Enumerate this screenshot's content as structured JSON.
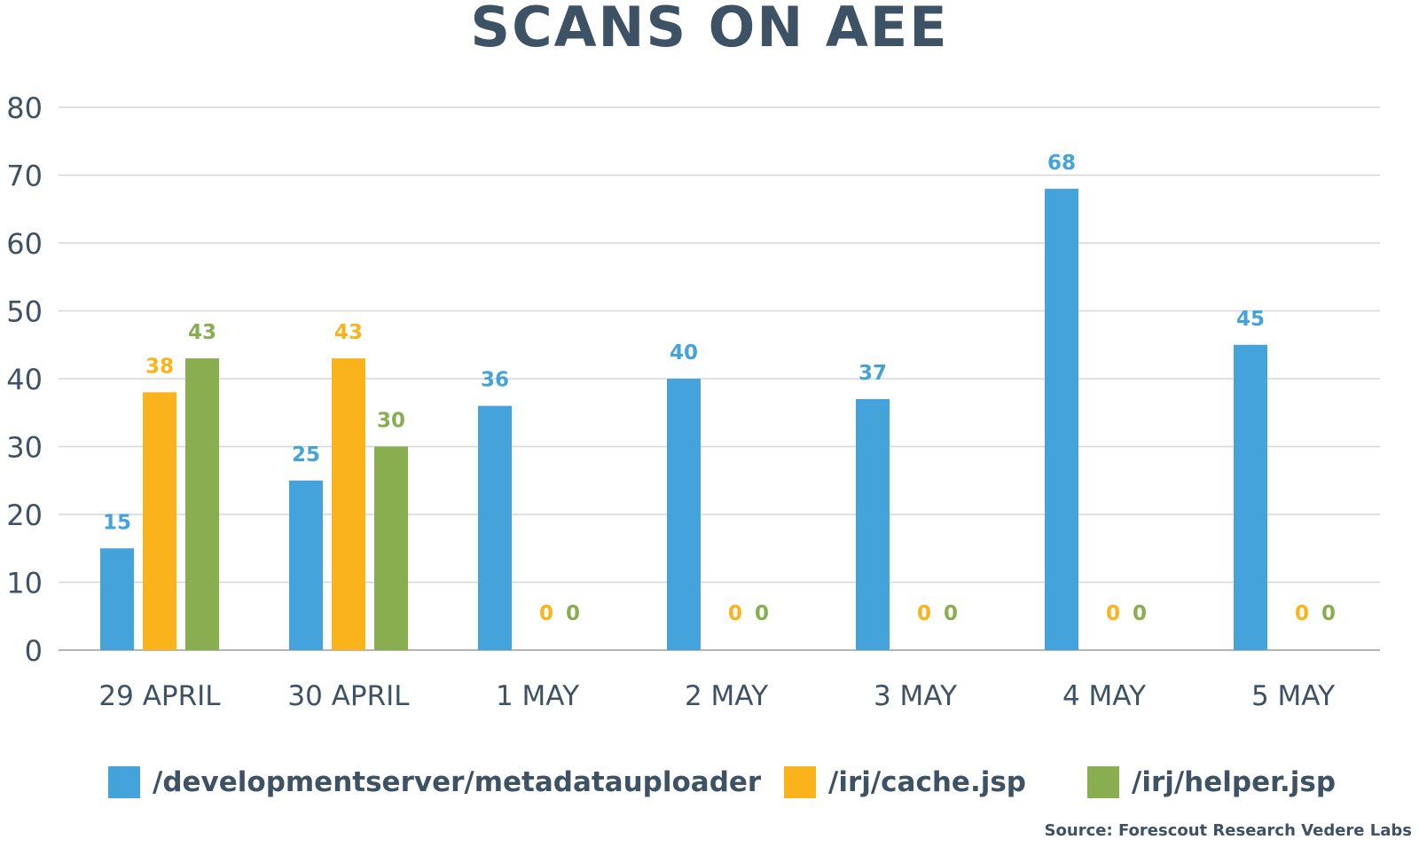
{
  "chart_data": {
    "type": "bar",
    "title": "SCANS ON AEE",
    "categories": [
      "29 APRIL",
      "30 APRIL",
      "1 MAY",
      "2 MAY",
      "3 MAY",
      "4 MAY",
      "5 MAY"
    ],
    "series": [
      {
        "name": "/developmentserver/metadatauploader",
        "color": "#45a3dc",
        "values": [
          15,
          25,
          36,
          40,
          37,
          68,
          45
        ]
      },
      {
        "name": "/irj/cache.jsp",
        "color": "#fab31a",
        "values": [
          38,
          43,
          0,
          0,
          0,
          0,
          0
        ]
      },
      {
        "name": "/irj/helper.jsp",
        "color": "#88ae50",
        "values": [
          43,
          30,
          0,
          0,
          0,
          0,
          0
        ]
      }
    ],
    "ylim": [
      0,
      80
    ],
    "yticks": [
      0,
      10,
      20,
      30,
      40,
      50,
      60,
      70,
      80
    ],
    "grid": true,
    "legend_position": "bottom",
    "xlabel": "",
    "ylabel": ""
  },
  "source": "Source: Forescout Research Vedere Labs"
}
